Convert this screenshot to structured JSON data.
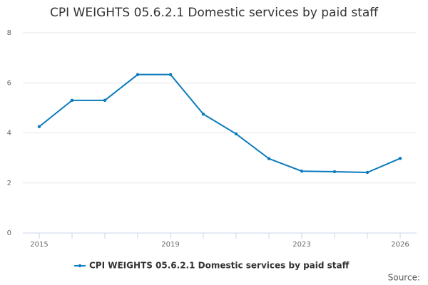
{
  "chart_data": {
    "type": "line",
    "title": "CPI WEIGHTS 05.6.2.1 Domestic services by paid staff",
    "x": [
      2015,
      2016,
      2017,
      2018,
      2019,
      2020,
      2021,
      2022,
      2023,
      2024,
      2025,
      2026
    ],
    "series": [
      {
        "name": "CPI WEIGHTS 05.6.2.1 Domestic services by paid staff",
        "color": "#0a7bbd",
        "values": [
          4.25,
          5.3,
          5.3,
          6.33,
          6.33,
          4.75,
          3.96,
          2.97,
          2.47,
          2.45,
          2.42,
          2.98
        ]
      }
    ],
    "xlim": [
      2014.5,
      2026.5
    ],
    "xticks": [
      2015,
      2019,
      2023,
      2026
    ],
    "ylim": [
      0,
      8
    ],
    "yticks": [
      0,
      2,
      4,
      6,
      8
    ],
    "grid": true,
    "source": "Source:"
  }
}
